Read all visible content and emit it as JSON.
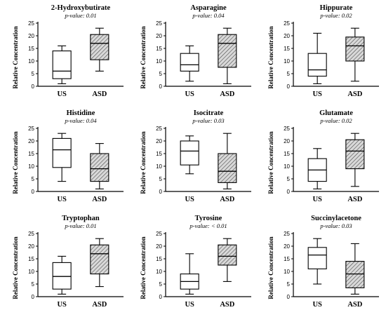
{
  "chart_data": [
    {
      "type": "box",
      "title": "2-Hydroxybutirate",
      "subtitle": "p-value: 0.01",
      "ylabel": "Relative Concentration",
      "ylim": [
        0,
        25
      ],
      "yticks": [
        0,
        5,
        10,
        15,
        20,
        25
      ],
      "categories": [
        "US",
        "ASD"
      ],
      "boxes": [
        {
          "category": "US",
          "min": 1,
          "q1": 3,
          "median": 6,
          "q3": 14,
          "max": 16,
          "hatched": false
        },
        {
          "category": "ASD",
          "min": 6,
          "q1": 10.5,
          "median": 17,
          "q3": 20.5,
          "max": 23,
          "hatched": true
        }
      ]
    },
    {
      "type": "box",
      "title": "Asparagine",
      "subtitle": "p-value: 0.04",
      "ylabel": "Relative Concentration",
      "ylim": [
        0,
        25
      ],
      "yticks": [
        0,
        5,
        10,
        15,
        20,
        25
      ],
      "categories": [
        "US",
        "ASD"
      ],
      "boxes": [
        {
          "category": "US",
          "min": 2,
          "q1": 6,
          "median": 8.5,
          "q3": 13,
          "max": 16,
          "hatched": false
        },
        {
          "category": "ASD",
          "min": 1,
          "q1": 7.5,
          "median": 17,
          "q3": 20.5,
          "max": 23,
          "hatched": true
        }
      ]
    },
    {
      "type": "box",
      "title": "Hippurate",
      "subtitle": "p-value: 0.02",
      "ylabel": "Relative Concentration",
      "ylim": [
        0,
        25
      ],
      "yticks": [
        0,
        5,
        10,
        15,
        20,
        25
      ],
      "categories": [
        "US",
        "ASD"
      ],
      "boxes": [
        {
          "category": "US",
          "min": 1,
          "q1": 4,
          "median": 6.5,
          "q3": 13,
          "max": 21,
          "hatched": false
        },
        {
          "category": "ASD",
          "min": 2,
          "q1": 10,
          "median": 16,
          "q3": 19.5,
          "max": 23,
          "hatched": true
        }
      ]
    },
    {
      "type": "box",
      "title": "Histidine",
      "subtitle": "p-value: 0.04",
      "ylabel": "Relative Concentration",
      "ylim": [
        0,
        25
      ],
      "yticks": [
        0,
        5,
        10,
        15,
        20,
        25
      ],
      "categories": [
        "US",
        "ASD"
      ],
      "boxes": [
        {
          "category": "US",
          "min": 4,
          "q1": 9.5,
          "median": 16.5,
          "q3": 21,
          "max": 23,
          "hatched": false
        },
        {
          "category": "ASD",
          "min": 1,
          "q1": 4,
          "median": 9,
          "q3": 15,
          "max": 19,
          "hatched": true
        }
      ]
    },
    {
      "type": "box",
      "title": "Isocitrate",
      "subtitle": "p-value: 0.03",
      "ylabel": "Relative Concentration",
      "ylim": [
        0,
        25
      ],
      "yticks": [
        0,
        5,
        10,
        15,
        20,
        25
      ],
      "categories": [
        "US",
        "ASD"
      ],
      "boxes": [
        {
          "category": "US",
          "min": 7,
          "q1": 10.5,
          "median": 16,
          "q3": 20,
          "max": 22,
          "hatched": false
        },
        {
          "category": "ASD",
          "min": 1,
          "q1": 3.5,
          "median": 8,
          "q3": 15,
          "max": 23,
          "hatched": true
        }
      ]
    },
    {
      "type": "box",
      "title": "Glutamate",
      "subtitle": "p-value: 0.02",
      "ylabel": "Relative Concentration",
      "ylim": [
        0,
        25
      ],
      "yticks": [
        0,
        5,
        10,
        15,
        20,
        25
      ],
      "categories": [
        "US",
        "ASD"
      ],
      "boxes": [
        {
          "category": "US",
          "min": 1,
          "q1": 4,
          "median": 8.5,
          "q3": 13,
          "max": 17,
          "hatched": false
        },
        {
          "category": "ASD",
          "min": 2,
          "q1": 9,
          "median": 16,
          "q3": 20.5,
          "max": 23,
          "hatched": true
        }
      ]
    },
    {
      "type": "box",
      "title": "Tryptophan",
      "subtitle": "p-value: 0.01",
      "ylabel": "Relative Concentration",
      "ylim": [
        0,
        25
      ],
      "yticks": [
        0,
        5,
        10,
        15,
        20,
        25
      ],
      "categories": [
        "US",
        "ASD"
      ],
      "boxes": [
        {
          "category": "US",
          "min": 1,
          "q1": 3,
          "median": 8,
          "q3": 13.5,
          "max": 16,
          "hatched": false
        },
        {
          "category": "ASD",
          "min": 4,
          "q1": 9,
          "median": 17,
          "q3": 20.5,
          "max": 23,
          "hatched": true
        }
      ]
    },
    {
      "type": "box",
      "title": "Tyrosine",
      "subtitle": "p-value: < 0.01",
      "ylabel": "Relative Concentration",
      "ylim": [
        0,
        25
      ],
      "yticks": [
        0,
        5,
        10,
        15,
        20,
        25
      ],
      "categories": [
        "US",
        "ASD"
      ],
      "boxes": [
        {
          "category": "US",
          "min": 1,
          "q1": 3,
          "median": 6,
          "q3": 9,
          "max": 17,
          "hatched": false
        },
        {
          "category": "ASD",
          "min": 6,
          "q1": 12.5,
          "median": 16,
          "q3": 20.5,
          "max": 23,
          "hatched": true
        }
      ]
    },
    {
      "type": "box",
      "title": "Succinylacetone",
      "subtitle": "p-value: 0.03",
      "ylabel": "Relative Concentration",
      "ylim": [
        0,
        25
      ],
      "yticks": [
        0,
        5,
        10,
        15,
        20,
        25
      ],
      "categories": [
        "US",
        "ASD"
      ],
      "boxes": [
        {
          "category": "US",
          "min": 5,
          "q1": 11,
          "median": 16.5,
          "q3": 19.5,
          "max": 23,
          "hatched": false
        },
        {
          "category": "ASD",
          "min": 1,
          "q1": 3.5,
          "median": 9,
          "q3": 14,
          "max": 21,
          "hatched": true
        }
      ]
    }
  ]
}
